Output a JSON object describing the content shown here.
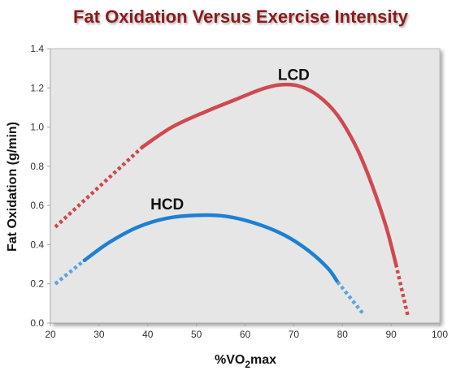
{
  "chart_data": {
    "type": "line",
    "title": "Fat Oxidation Versus Exercise Intensity",
    "xlabel_main": "%VO",
    "xlabel_sub": "2",
    "xlabel_tail": "max",
    "ylabel": "Fat Oxidation (g/min)",
    "xlim": [
      20,
      100
    ],
    "ylim": [
      0,
      1.4
    ],
    "x_ticks": [
      "20",
      "30",
      "40",
      "50",
      "60",
      "70",
      "80",
      "90",
      "100"
    ],
    "y_ticks": [
      "0.0",
      "0.2",
      "0.4",
      "0.6",
      "0.8",
      "1.0",
      "1.2",
      "1.4"
    ],
    "grid": false,
    "colors": {
      "title": "#8b1a1a",
      "plot_bg": "#e6e6e6",
      "lcd": "#d04950",
      "hcd": "#1f7fd1",
      "hcd_dotted": "#5fa3dc"
    },
    "series": [
      {
        "name": "LCD",
        "color": "#d04950",
        "dotted_start": [
          [
            21,
            0.49
          ],
          [
            39,
            0.9
          ]
        ],
        "solid": [
          [
            39,
            0.9
          ],
          [
            45,
            1.0
          ],
          [
            52,
            1.08
          ],
          [
            58,
            1.14
          ],
          [
            63,
            1.19
          ],
          [
            67,
            1.215
          ],
          [
            71,
            1.21
          ],
          [
            75,
            1.16
          ],
          [
            79,
            1.06
          ],
          [
            83,
            0.89
          ],
          [
            86,
            0.71
          ],
          [
            89,
            0.49
          ],
          [
            91,
            0.3
          ]
        ],
        "dotted_end": [
          [
            91,
            0.3
          ],
          [
            93.5,
            0.03
          ]
        ],
        "label_at": [
          70,
          1.24
        ]
      },
      {
        "name": "HCD",
        "color": "#1f7fd1",
        "dotted_start": [
          [
            21,
            0.2
          ],
          [
            27,
            0.32
          ]
        ],
        "solid": [
          [
            27,
            0.32
          ],
          [
            32,
            0.41
          ],
          [
            38,
            0.49
          ],
          [
            44,
            0.535
          ],
          [
            50,
            0.55
          ],
          [
            56,
            0.545
          ],
          [
            62,
            0.51
          ],
          [
            68,
            0.45
          ],
          [
            73,
            0.37
          ],
          [
            77,
            0.28
          ],
          [
            79,
            0.21
          ]
        ],
        "dotted_end": [
          [
            79,
            0.21
          ],
          [
            84.5,
            0.04
          ]
        ],
        "label_at": [
          44,
          0.58
        ]
      }
    ]
  }
}
